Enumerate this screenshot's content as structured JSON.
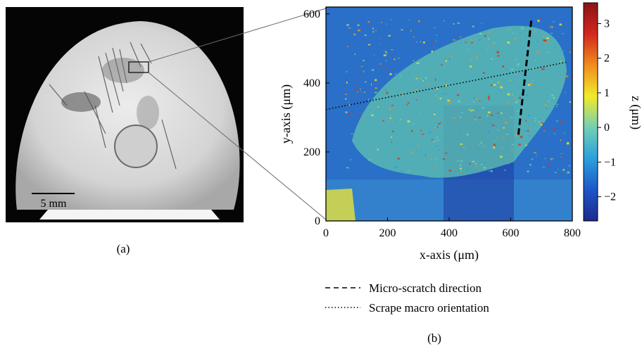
{
  "panel_a": {
    "label": "(a)",
    "scale_bar_label": "5 mm"
  },
  "panel_b": {
    "label": "(b)",
    "xlabel": "x-axis (μm)",
    "ylabel": "y-axis (μm)",
    "colorbar_label": "z (μm)",
    "legend": [
      {
        "label": "Micro-scratch direction",
        "style": "dashed"
      },
      {
        "label": "Scrape macro orientation",
        "style": "dotted"
      }
    ]
  },
  "chart_data": {
    "type": "heatmap",
    "xlim": [
      0,
      800
    ],
    "ylim": [
      0,
      620
    ],
    "x_ticks": [
      0,
      200,
      400,
      600,
      800
    ],
    "y_ticks": [
      0,
      200,
      400,
      600
    ],
    "colorbar": {
      "range": [
        -2.7,
        3.6
      ],
      "ticks": [
        -2,
        -1,
        0,
        1,
        2,
        3
      ],
      "colormap": "jet",
      "colors": [
        "#1e2a8c",
        "#1f56c8",
        "#2aa0dc",
        "#72d0b4",
        "#f2ea2a",
        "#f08c1e",
        "#d2281e",
        "#8a1414"
      ]
    },
    "lines": [
      {
        "name": "Micro-scratch direction",
        "style": "dashed",
        "points": [
          [
            625,
            250
          ],
          [
            668,
            590
          ]
        ]
      },
      {
        "name": "Scrape macro orientation",
        "style": "dotted",
        "points": [
          [
            0,
            323
          ],
          [
            780,
            460
          ]
        ]
      }
    ],
    "grid": false
  },
  "colors": {
    "photo_background": "#050505",
    "photo_dome": "#d8d8d8",
    "heatmap_base": "#2a6fc8",
    "connector": "#6a6a6a"
  }
}
